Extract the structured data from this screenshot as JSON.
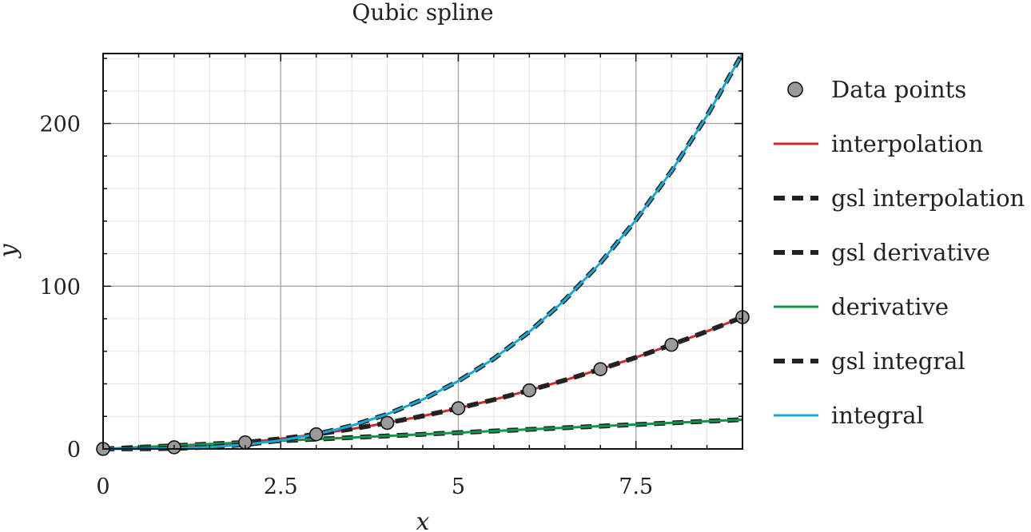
{
  "chart_data": {
    "type": "line",
    "title": "Qubic spline",
    "xlabel": "x",
    "ylabel": "y",
    "xlim": [
      0,
      9
    ],
    "ylim": [
      0,
      243
    ],
    "xticks": [
      0,
      2.5,
      5,
      7.5
    ],
    "xtick_labels": [
      "0",
      "2.5",
      "5",
      "7.5"
    ],
    "yticks": [
      0,
      100,
      200
    ],
    "ytick_labels": [
      "0",
      "100",
      "200"
    ],
    "x_minor_step": 0.5,
    "y_minor_step": 20,
    "grid": true,
    "legend_position": "right",
    "points": {
      "name": "Data points",
      "color": "#9a9a9a",
      "x": [
        0,
        1,
        2,
        3,
        4,
        5,
        6,
        7,
        8,
        9
      ],
      "y": [
        0,
        1,
        4,
        9,
        16,
        25,
        36,
        49,
        64,
        81
      ]
    },
    "series": [
      {
        "name": "interpolation",
        "color": "#d62728",
        "style": "solid",
        "x": [
          0,
          0.5,
          1,
          1.5,
          2,
          2.5,
          3,
          3.5,
          4,
          4.5,
          5,
          5.5,
          6,
          6.5,
          7,
          7.5,
          8,
          8.5,
          9
        ],
        "y": [
          0,
          0.25,
          1,
          2.25,
          4,
          6.25,
          9,
          12.25,
          16,
          20.25,
          25,
          30.25,
          36,
          42.25,
          49,
          56.25,
          64,
          72.25,
          81
        ]
      },
      {
        "name": "gsl interpolation",
        "color": "#222222",
        "style": "dashed",
        "x": [
          0,
          0.5,
          1,
          1.5,
          2,
          2.5,
          3,
          3.5,
          4,
          4.5,
          5,
          5.5,
          6,
          6.5,
          7,
          7.5,
          8,
          8.5,
          9
        ],
        "y": [
          0,
          0.25,
          1,
          2.25,
          4,
          6.25,
          9,
          12.25,
          16,
          20.25,
          25,
          30.25,
          36,
          42.25,
          49,
          56.25,
          64,
          72.25,
          81
        ]
      },
      {
        "name": "gsl derivative",
        "color": "#222222",
        "style": "dashed",
        "x": [
          0,
          1,
          2,
          3,
          4,
          5,
          6,
          7,
          8,
          9
        ],
        "y": [
          0,
          2,
          4,
          6,
          8,
          10,
          12,
          14,
          16,
          18
        ]
      },
      {
        "name": "derivative",
        "color": "#109648",
        "style": "solid",
        "x": [
          0,
          1,
          2,
          3,
          4,
          5,
          6,
          7,
          8,
          9
        ],
        "y": [
          0,
          2,
          4,
          6,
          8,
          10,
          12,
          14,
          16,
          18
        ]
      },
      {
        "name": "gsl integral",
        "color": "#222222",
        "style": "dashed",
        "x": [
          0,
          0.5,
          1,
          1.5,
          2,
          2.5,
          3,
          3.5,
          4,
          4.5,
          5,
          5.5,
          6,
          6.5,
          7,
          7.5,
          8,
          8.5,
          9
        ],
        "y": [
          0,
          0.04,
          0.33,
          1.13,
          2.67,
          5.21,
          9,
          14.29,
          21.33,
          30.38,
          41.67,
          55.46,
          72,
          91.54,
          114.33,
          140.63,
          170.67,
          204.71,
          243
        ]
      },
      {
        "name": "integral",
        "color": "#17a9d6",
        "style": "solid",
        "x": [
          0,
          0.5,
          1,
          1.5,
          2,
          2.5,
          3,
          3.5,
          4,
          4.5,
          5,
          5.5,
          6,
          6.5,
          7,
          7.5,
          8,
          8.5,
          9
        ],
        "y": [
          0,
          0.04,
          0.33,
          1.13,
          2.67,
          5.21,
          9,
          14.29,
          21.33,
          30.38,
          41.67,
          55.46,
          72,
          91.54,
          114.33,
          140.63,
          170.67,
          204.71,
          243
        ]
      }
    ],
    "legend": [
      "Data points",
      "interpolation",
      "gsl interpolation",
      "gsl derivative",
      "derivative",
      "gsl integral",
      "integral"
    ]
  }
}
